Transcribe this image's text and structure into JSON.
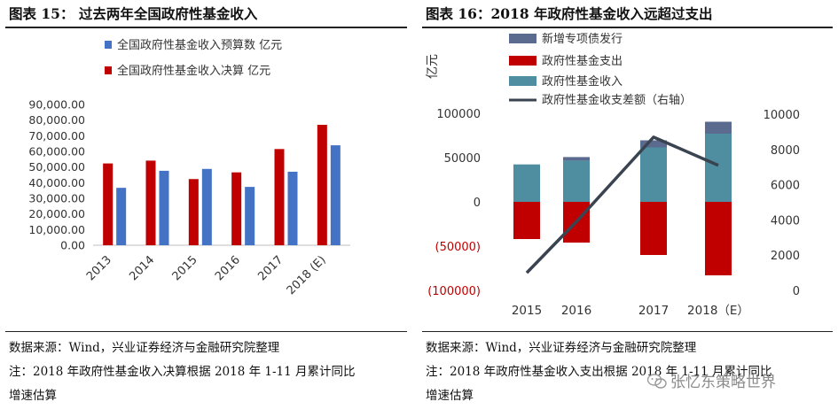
{
  "left": {
    "title": "图表 15：   过去两年全国政府性基金收入",
    "source": "数据来源：Wind，兴业证券经济与金融研究院整理",
    "note_line1": "注：2018 年政府性基金收入决算根据 2018 年 1-11 月累计同比",
    "note_line2": "增速估算"
  },
  "right": {
    "title": "图表 16：2018 年政府性基金收入远超过支出",
    "source": "数据来源：Wind，兴业证券经济与金融研究院整理",
    "note_line1": "注：2018 年政府性基金收入支出根据 2018 年 1-11 月累计同比",
    "note_line2": "增速估算"
  },
  "watermark": "张忆东策略世界",
  "chart_data": [
    {
      "type": "bar",
      "categories": [
        "2013",
        "2014",
        "2015",
        "2016",
        "2017",
        "2018 (E)"
      ],
      "series": [
        {
          "name": "全国政府性基金收入决算 亿元",
          "color": "#c00000",
          "values": [
            52300,
            54100,
            42300,
            46600,
            61500,
            77000
          ]
        },
        {
          "name": "全国政府性基金收入预算数 亿元",
          "color": "#4472c4",
          "values": [
            36700,
            47600,
            48800,
            37300,
            47000,
            63900
          ]
        }
      ],
      "yticks": [
        "0.00",
        "10,000.00",
        "20,000.00",
        "30,000.00",
        "40,000.00",
        "50,000.00",
        "60,000.00",
        "70,000.00",
        "80,000.00",
        "90,000.00"
      ],
      "ylim": [
        0,
        90000
      ],
      "legend_position": "top",
      "grid": false
    },
    {
      "type": "bar+line",
      "categories": [
        "2015",
        "2016",
        "2017",
        "2018（E）"
      ],
      "ylabel": "亿元",
      "series": [
        {
          "name": "新增专项债发行",
          "color": "#5b6a8f",
          "values": [
            0,
            4000,
            8000,
            13500
          ]
        },
        {
          "name": "政府性基金支出",
          "color": "#c00000",
          "values": [
            -42000,
            -46000,
            -60000,
            -83000
          ]
        },
        {
          "name": "政府性基金收入",
          "color": "#4e8ea0",
          "values": [
            42300,
            46600,
            61500,
            77000
          ]
        },
        {
          "name": "政府性基金收支差额（右轴）",
          "color": "#3a4451",
          "axis": "right",
          "line": true,
          "values": [
            1000,
            3900,
            8700,
            7100
          ]
        }
      ],
      "yticks_left": [
        "100000",
        "50000",
        "0",
        "(50000)",
        "(100000)"
      ],
      "ylim_left": [
        -100000,
        100000
      ],
      "yticks_right": [
        "10000",
        "8000",
        "6000",
        "4000",
        "2000",
        "0"
      ],
      "ylim_right": [
        0,
        10000
      ],
      "legend_position": "top-left",
      "grid": false
    }
  ]
}
